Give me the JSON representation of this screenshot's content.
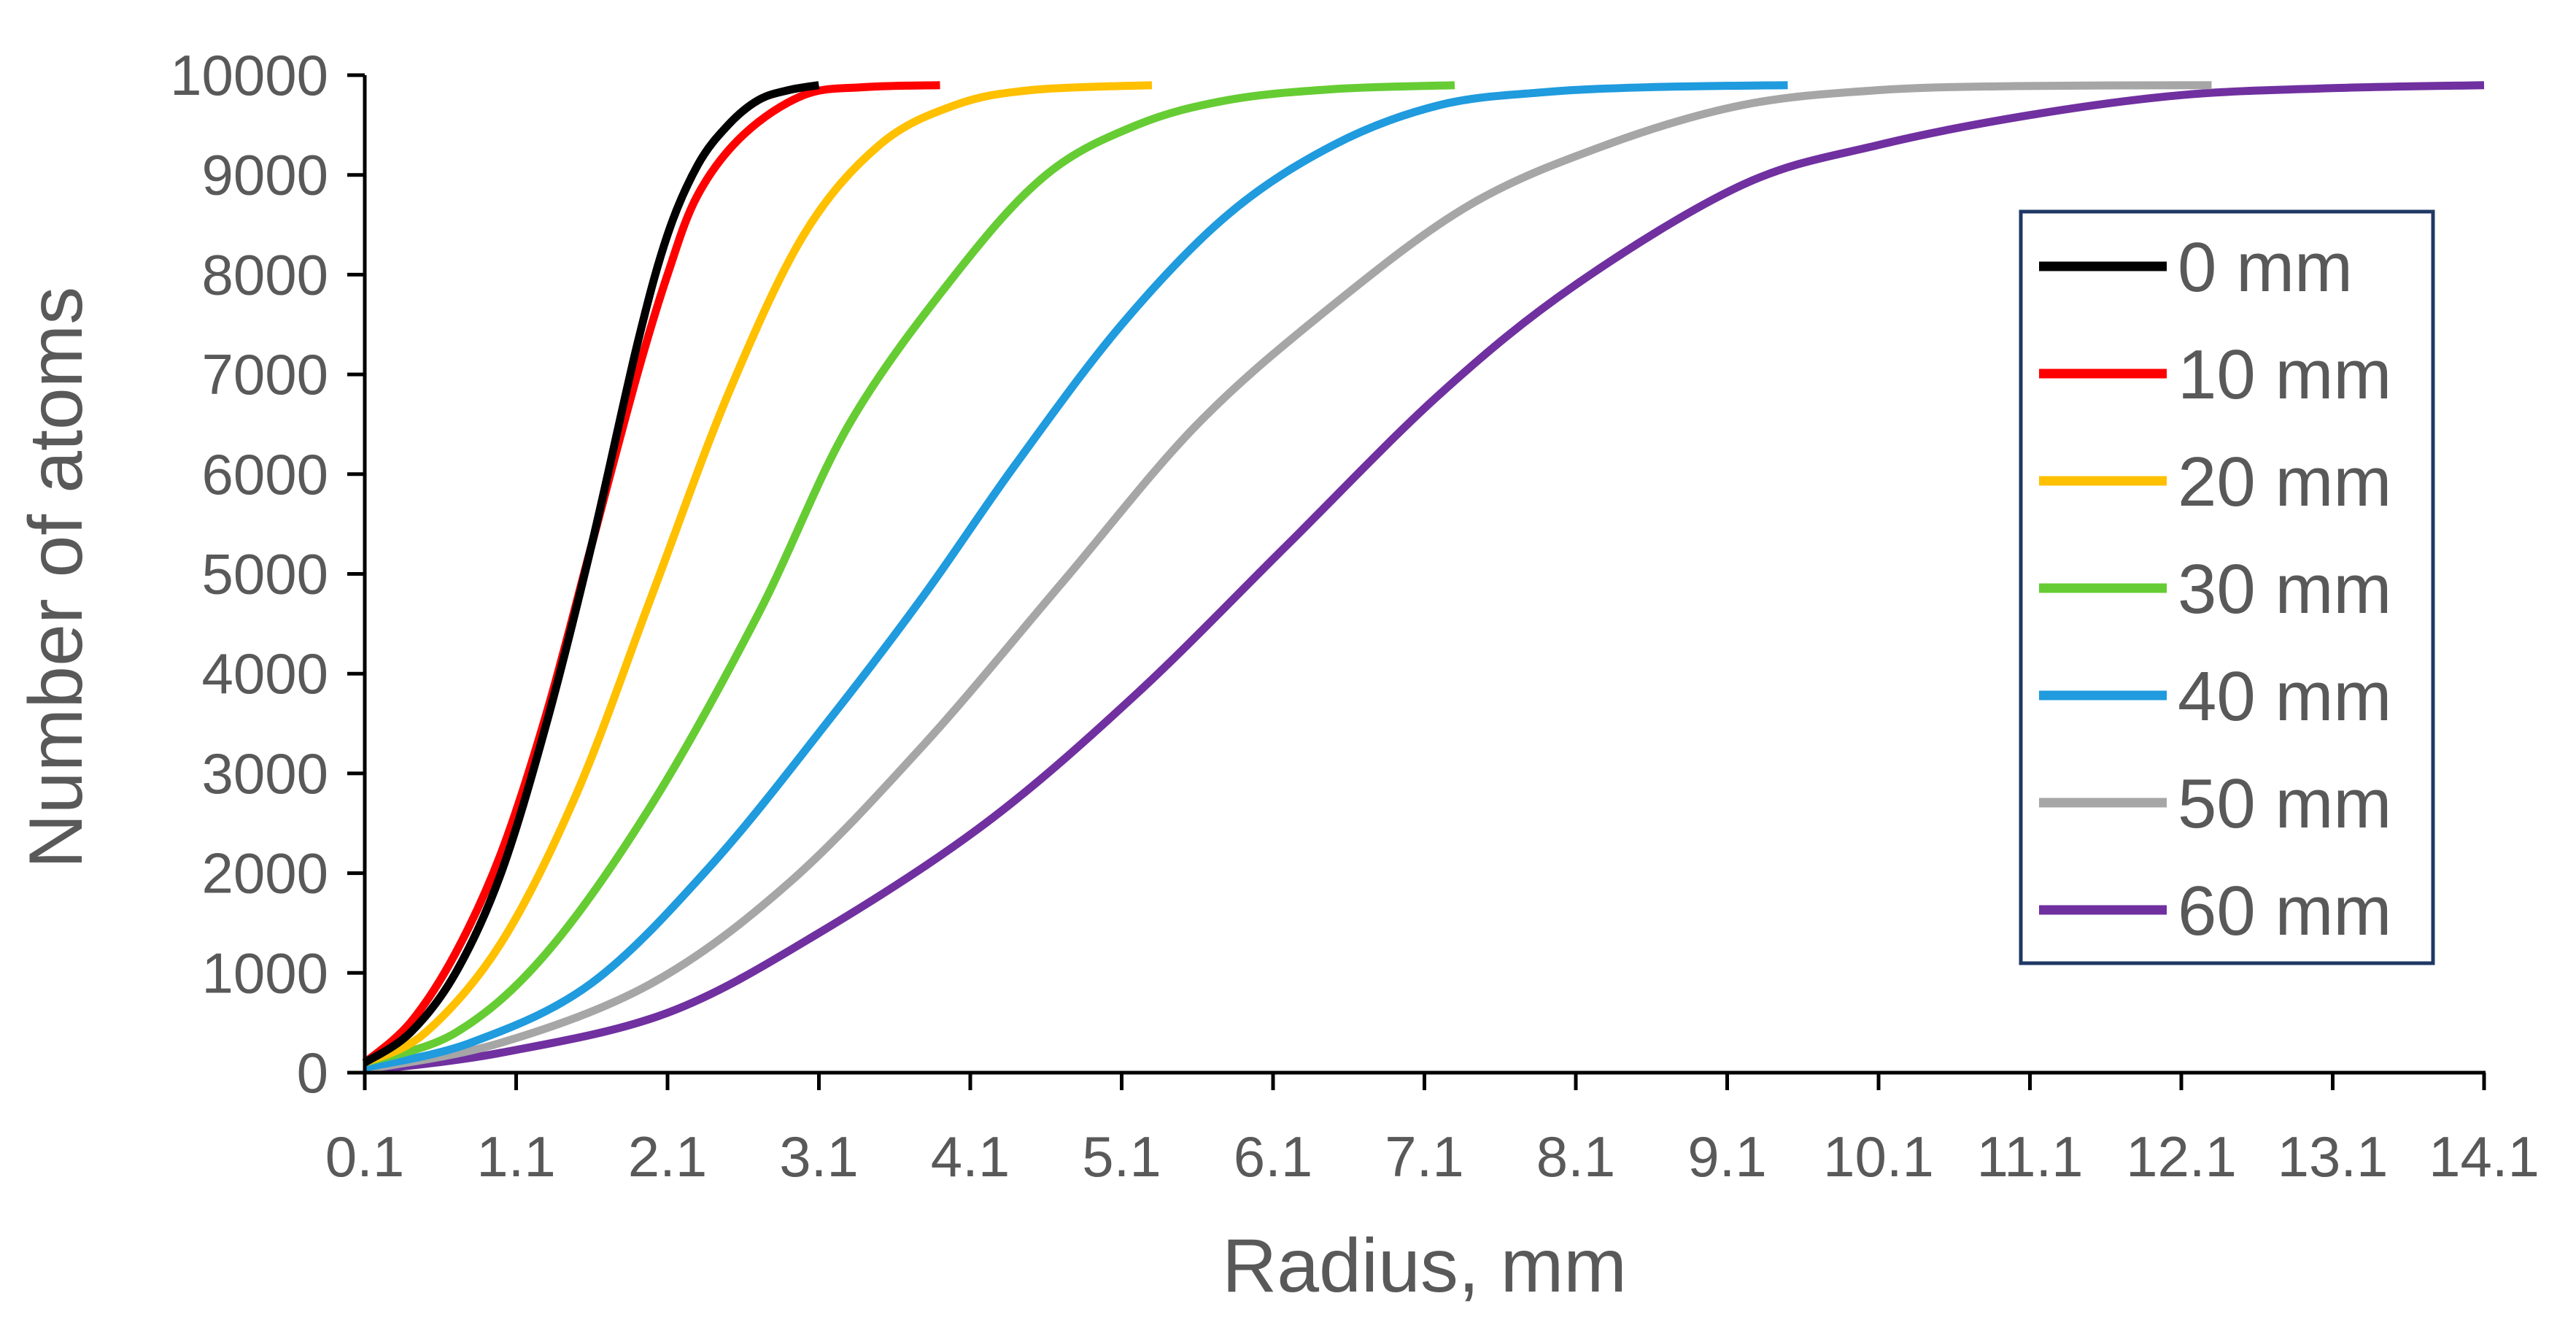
{
  "chart_data": {
    "type": "line",
    "title": "",
    "xlabel": "Radius,  mm",
    "ylabel": "Number of atoms",
    "xlim": [
      0.1,
      14.1
    ],
    "ylim": [
      0,
      10000
    ],
    "x_ticks": [
      "0.1",
      "1.1",
      "2.1",
      "3.1",
      "4.1",
      "5.1",
      "6.1",
      "7.1",
      "8.1",
      "9.1",
      "10.1",
      "11.1",
      "12.1",
      "13.1",
      "14.1"
    ],
    "y_ticks": [
      "0",
      "1000",
      "2000",
      "3000",
      "4000",
      "5000",
      "6000",
      "7000",
      "8000",
      "9000",
      "10000"
    ],
    "grid": false,
    "legend_position": "right",
    "series": [
      {
        "name": "0 mm",
        "color": "#000000",
        "points": [
          [
            0.1,
            100
          ],
          [
            0.4,
            400
          ],
          [
            0.7,
            1000
          ],
          [
            1.0,
            2000
          ],
          [
            1.3,
            3500
          ],
          [
            1.6,
            5300
          ],
          [
            1.9,
            7300
          ],
          [
            2.1,
            8400
          ],
          [
            2.3,
            9100
          ],
          [
            2.5,
            9500
          ],
          [
            2.7,
            9750
          ],
          [
            2.9,
            9850
          ],
          [
            3.1,
            9900
          ]
        ]
      },
      {
        "name": "10 mm",
        "color": "#FF0000",
        "points": [
          [
            0.1,
            100
          ],
          [
            0.4,
            500
          ],
          [
            0.7,
            1200
          ],
          [
            1.0,
            2200
          ],
          [
            1.3,
            3600
          ],
          [
            1.6,
            5300
          ],
          [
            1.9,
            7000
          ],
          [
            2.1,
            8000
          ],
          [
            2.3,
            8800
          ],
          [
            2.6,
            9400
          ],
          [
            3.0,
            9800
          ],
          [
            3.4,
            9880
          ],
          [
            3.9,
            9900
          ]
        ]
      },
      {
        "name": "20 mm",
        "color": "#FFC000",
        "points": [
          [
            0.1,
            100
          ],
          [
            0.5,
            400
          ],
          [
            1.0,
            1300
          ],
          [
            1.5,
            2800
          ],
          [
            2.0,
            4800
          ],
          [
            2.5,
            6800
          ],
          [
            3.0,
            8400
          ],
          [
            3.5,
            9300
          ],
          [
            4.0,
            9700
          ],
          [
            4.5,
            9850
          ],
          [
            5.3,
            9900
          ]
        ]
      },
      {
        "name": "30 mm",
        "color": "#66CC33",
        "points": [
          [
            0.1,
            100
          ],
          [
            0.7,
            400
          ],
          [
            1.3,
            1200
          ],
          [
            2.0,
            2700
          ],
          [
            2.7,
            4600
          ],
          [
            3.3,
            6500
          ],
          [
            4.0,
            8000
          ],
          [
            4.6,
            9000
          ],
          [
            5.2,
            9500
          ],
          [
            5.8,
            9750
          ],
          [
            6.5,
            9860
          ],
          [
            7.3,
            9900
          ]
        ]
      },
      {
        "name": "40 mm",
        "color": "#1F9BDE",
        "points": [
          [
            0.1,
            50
          ],
          [
            0.8,
            300
          ],
          [
            1.6,
            900
          ],
          [
            2.4,
            2100
          ],
          [
            3.2,
            3600
          ],
          [
            3.8,
            4800
          ],
          [
            4.4,
            6100
          ],
          [
            5.1,
            7500
          ],
          [
            5.8,
            8600
          ],
          [
            6.5,
            9300
          ],
          [
            7.2,
            9700
          ],
          [
            7.9,
            9830
          ],
          [
            8.6,
            9880
          ],
          [
            9.5,
            9900
          ]
        ]
      },
      {
        "name": "50 mm",
        "color": "#A6A6A6",
        "points": [
          [
            0.1,
            30
          ],
          [
            1.0,
            300
          ],
          [
            2.0,
            900
          ],
          [
            2.9,
            1900
          ],
          [
            3.8,
            3300
          ],
          [
            4.7,
            4900
          ],
          [
            5.6,
            6500
          ],
          [
            6.5,
            7700
          ],
          [
            7.4,
            8700
          ],
          [
            8.3,
            9300
          ],
          [
            9.2,
            9700
          ],
          [
            10.1,
            9850
          ],
          [
            11.0,
            9890
          ],
          [
            12.3,
            9900
          ]
        ]
      },
      {
        "name": "60 mm",
        "color": "#7030A0",
        "points": [
          [
            0.1,
            20
          ],
          [
            1.0,
            200
          ],
          [
            2.1,
            600
          ],
          [
            3.1,
            1400
          ],
          [
            4.2,
            2500
          ],
          [
            5.2,
            3800
          ],
          [
            6.2,
            5300
          ],
          [
            7.2,
            6800
          ],
          [
            8.1,
            7900
          ],
          [
            9.2,
            8900
          ],
          [
            10.1,
            9300
          ],
          [
            11.1,
            9600
          ],
          [
            12.1,
            9800
          ],
          [
            13.1,
            9870
          ],
          [
            14.1,
            9900
          ]
        ]
      }
    ]
  }
}
